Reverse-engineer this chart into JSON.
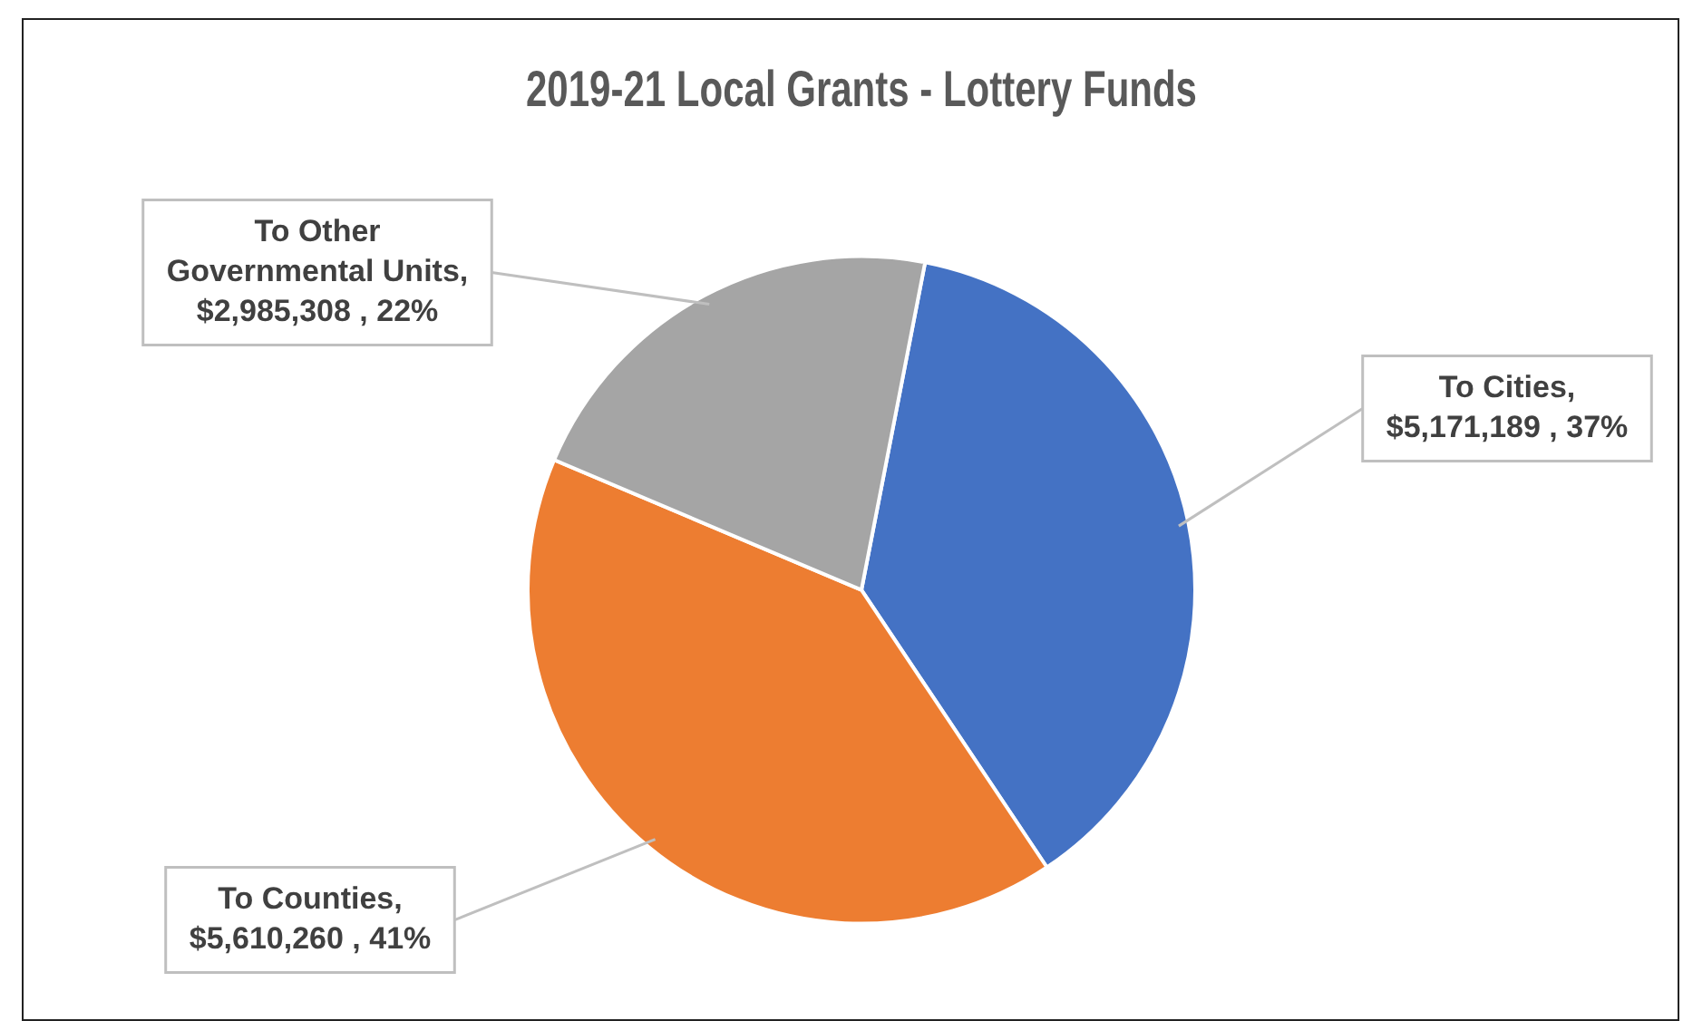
{
  "chart_data": {
    "type": "pie",
    "title": "2019-21 Local Grants - Lottery Funds",
    "categories": [
      "To Cities",
      "To Counties",
      "To Other Governmental Units"
    ],
    "values": [
      5171189,
      5610260,
      2985308
    ],
    "value_labels": [
      ", $5,171,189 , 37%",
      ", $5,610,260 , 41%",
      ", $2,985,308 , 22%"
    ],
    "colors": [
      "#4472c4",
      "#ed7d31",
      "#a5a5a5"
    ]
  }
}
